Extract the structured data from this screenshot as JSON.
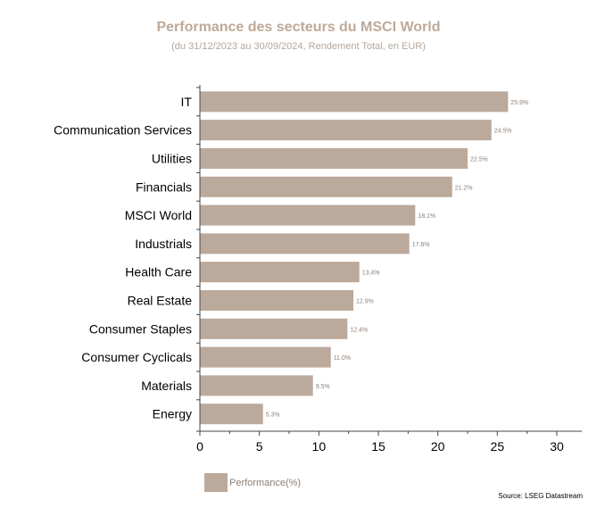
{
  "chart_data": {
    "type": "bar",
    "orientation": "horizontal",
    "title": "Performance des secteurs du MSCI World",
    "subtitle": "(du 31/12/2023 au 30/09/2024, Rendement Total, en EUR)",
    "categories": [
      "IT",
      "Communication Services",
      "Utilities",
      "Financials",
      "MSCI World",
      "Industrials",
      "Health Care",
      "Real Estate",
      "Consumer Staples",
      "Consumer Cyclicals",
      "Materials",
      "Energy"
    ],
    "series": [
      {
        "name": "Performance(%)",
        "values": [
          25.9,
          24.5,
          22.5,
          21.2,
          18.1,
          17.6,
          13.4,
          12.9,
          12.4,
          11.0,
          9.5,
          5.3
        ],
        "data_labels": [
          "25.9%",
          "24.5%",
          "22.5%",
          "21.2%",
          "18.1%",
          "17.6%",
          "13.4%",
          "12.9%",
          "12.4%",
          "11.0%",
          "9.5%",
          "5.3%"
        ]
      }
    ],
    "xlim": [
      0,
      30
    ],
    "xticks": [
      0,
      5,
      10,
      15,
      20,
      25,
      30
    ],
    "grid": false,
    "legend_position": "bottom-left",
    "colors": {
      "bar": "#bba99b",
      "title": "#bfa998",
      "axis": "#444444"
    }
  },
  "source": "Source: LSEG Datastream"
}
